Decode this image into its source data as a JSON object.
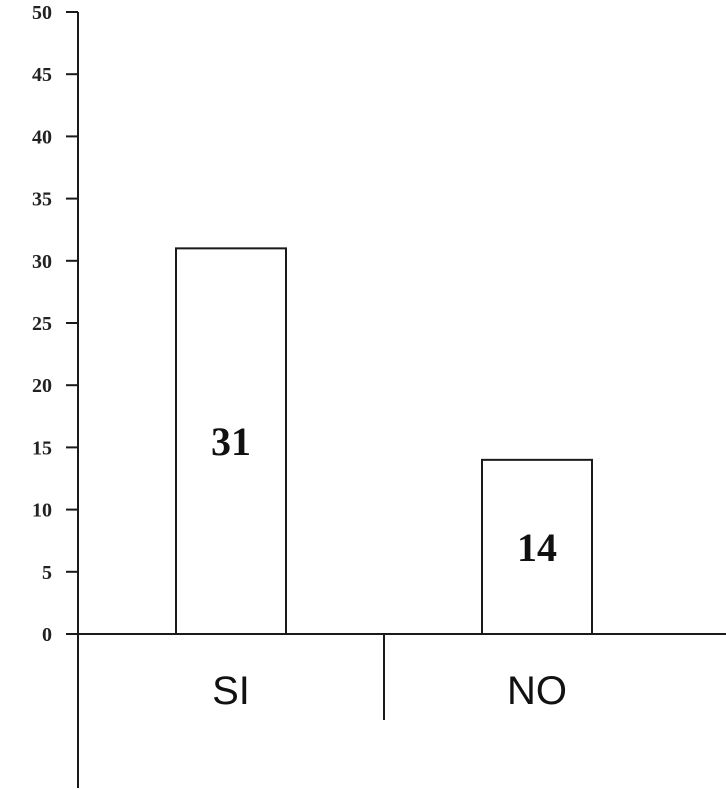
{
  "chart_data": {
    "type": "bar",
    "categories": [
      "SI",
      "NO"
    ],
    "values": [
      31,
      14
    ],
    "value_labels": [
      "31",
      "14"
    ],
    "title": "",
    "xlabel": "",
    "ylabel": "",
    "ylim": [
      0,
      50
    ],
    "y_ticks": [
      "0",
      "5",
      "10",
      "15",
      "20",
      "25",
      "30",
      "35",
      "40",
      "45",
      "50"
    ],
    "grid": false,
    "bar_fill": "#ffffff",
    "bar_stroke": "#1a1a1a",
    "axis_color": "#1a1a1a"
  }
}
